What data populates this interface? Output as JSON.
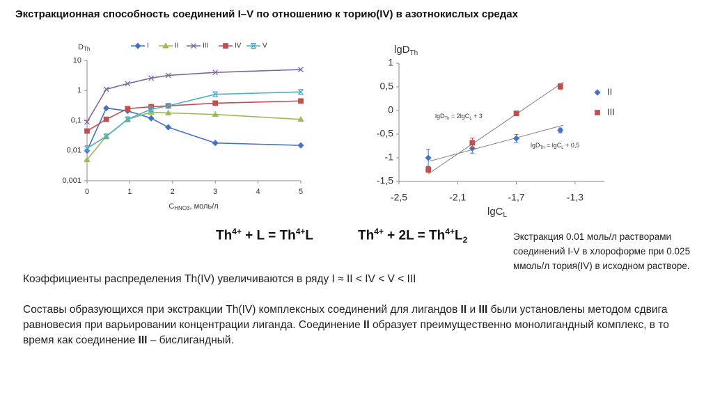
{
  "title": "Экстракционная способность соединений I–V по отношению к торию(IV) в азотнокислых средах",
  "chart_data": [
    {
      "type": "line",
      "ylabel": [
        "D",
        "Th"
      ],
      "xlabel": [
        "C",
        "HNO3",
        ", моль/л"
      ],
      "x": [
        0,
        0.45,
        0.95,
        1.5,
        1.9,
        3,
        5
      ],
      "xlim": [
        0,
        5
      ],
      "xticks": [
        0,
        1,
        2,
        3,
        4,
        5
      ],
      "ylim": [
        0.001,
        10
      ],
      "yticks": [
        {
          "value": 0.001,
          "label": "0,001"
        },
        {
          "value": 0.01,
          "label": "0,01"
        },
        {
          "value": 0.1,
          "label": "0,1"
        },
        1,
        10
      ],
      "ylog": true,
      "grid": false,
      "series": [
        {
          "name": "I",
          "color": "#4472c4",
          "marker": "diamond",
          "values": [
            0.01,
            0.26,
            0.21,
            0.12,
            0.06,
            0.018,
            0.015
          ]
        },
        {
          "name": "II",
          "color": "#9bbb59",
          "marker": "triangle",
          "values": [
            0.005,
            0.03,
            0.11,
            0.19,
            0.18,
            0.16,
            0.11
          ]
        },
        {
          "name": "III",
          "color": "#8064a2",
          "marker": "x",
          "values": [
            0.09,
            1.1,
            1.7,
            2.6,
            3.2,
            4,
            5
          ]
        },
        {
          "name": "IV",
          "color": "#c0504d",
          "marker": "square",
          "values": [
            0.045,
            0.11,
            0.25,
            0.29,
            0.31,
            0.38,
            0.45
          ]
        },
        {
          "name": "V",
          "color": "#4bacc6",
          "marker": "star",
          "values": [
            0.012,
            0.03,
            0.11,
            0.24,
            0.31,
            0.75,
            0.9
          ]
        }
      ]
    },
    {
      "type": "scatter",
      "ylabel": [
        "lgD",
        "Th"
      ],
      "xlabel": [
        "lgC",
        "L"
      ],
      "xlim": [
        -2.5,
        -1.1
      ],
      "xticks": [
        {
          "value": -2.5,
          "label": "-2,5"
        },
        {
          "value": -2.1,
          "label": "-2,1"
        },
        {
          "value": -1.7,
          "label": "-1,7"
        },
        {
          "value": -1.3,
          "label": "-1,3"
        }
      ],
      "ylim": [
        -1.5,
        1
      ],
      "yticks": [
        1,
        {
          "value": 0.5,
          "label": "0,5"
        },
        0,
        {
          "value": -0.5,
          "label": "-0,5"
        },
        -1,
        {
          "value": -1.5,
          "label": "-1,5"
        }
      ],
      "grid": false,
      "series": [
        {
          "name": "II",
          "color": "#4472c4",
          "marker": "diamond",
          "x": [
            -2.3,
            -2.0,
            -1.7,
            -1.4
          ],
          "values": [
            -1.0,
            -0.8,
            -0.59,
            -0.42
          ],
          "errors": [
            0.18,
            0.1,
            0.08,
            0.05
          ]
        },
        {
          "name": "III",
          "color": "#c0504d",
          "marker": "square",
          "x": [
            -2.3,
            -2.0,
            -1.7,
            -1.4
          ],
          "values": [
            -1.25,
            -0.68,
            -0.06,
            0.51
          ],
          "errors": [
            0.06,
            0.1,
            0.05,
            0.06
          ]
        }
      ],
      "trendlines": [
        {
          "color": "#808080",
          "x": [
            -2.3,
            -1.38
          ],
          "y": [
            -1.34,
            0.6
          ]
        },
        {
          "color": "#808080",
          "x": [
            -2.29,
            -1.38
          ],
          "y": [
            -1.07,
            -0.31
          ]
        }
      ],
      "annotations": [
        [
          "lgD",
          "Th",
          " = 2lgC",
          "L",
          " + 3"
        ],
        [
          "lgD",
          "Th",
          " = lgC",
          "L",
          " + 0,5"
        ]
      ]
    }
  ],
  "equations": [
    [
      "Th",
      "4+",
      " + L = Th",
      "4+",
      "L"
    ],
    [
      "Th",
      "4+",
      " + 2L = Th",
      "4+",
      "L",
      "2"
    ]
  ],
  "note": "Экстракция 0.01 моль/л растворами соединений I-V в хлороформе при 0.025 ммоль/л тория(IV) в исходном растворе.",
  "paragraphs": [
    [
      "Коэффициенты распределения Th(IV) увеличиваются в ряду I ≈ II < IV < V < III"
    ],
    [
      "Составы образующихся при экстракции Th(IV) комплексных соединений для лигандов ",
      "II",
      " и ",
      "III",
      " были установлены методом сдвига равновесия при варьировании концентрации лиганда. Соединение ",
      "II",
      " образует преимущественно монолигандный комплекс, в то время как соединение ",
      "III",
      " – бислигандный."
    ]
  ]
}
